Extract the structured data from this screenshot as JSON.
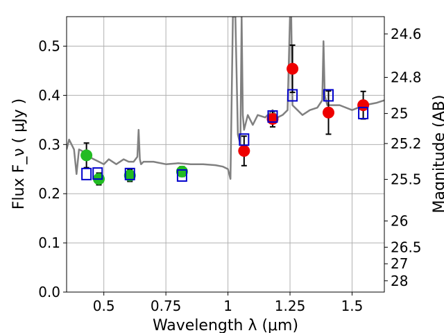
{
  "chart_data": {
    "type": "scatter",
    "xlabel": "Wavelength  λ (μm)",
    "ylabel": "Flux  F_ν  ( μJy )",
    "ylabel_right": "Magnitude (AB)",
    "xlim": [
      0.35,
      1.63
    ],
    "ylim": [
      0.0,
      0.56
    ],
    "grid": true,
    "x_ticks": [
      {
        "value": 0.5,
        "label": "0.5"
      },
      {
        "value": 0.75,
        "label": "0.75"
      },
      {
        "value": 1.0,
        "label": "1"
      },
      {
        "value": 1.25,
        "label": "1.25"
      },
      {
        "value": 1.5,
        "label": "1.5"
      }
    ],
    "y_ticks": [
      {
        "value": 0.0,
        "label": "0.0"
      },
      {
        "value": 0.1,
        "label": "0.1"
      },
      {
        "value": 0.2,
        "label": "0.2"
      },
      {
        "value": 0.3,
        "label": "0.3"
      },
      {
        "value": 0.4,
        "label": "0.4"
      },
      {
        "value": 0.5,
        "label": "0.5"
      }
    ],
    "right_ticks": [
      {
        "mag": 24.6,
        "label": "24.6"
      },
      {
        "mag": 24.8,
        "label": "24.8"
      },
      {
        "mag": 25.0,
        "label": "25"
      },
      {
        "mag": 25.2,
        "label": "25.2"
      },
      {
        "mag": 25.5,
        "label": "25.5"
      },
      {
        "mag": 26.0,
        "label": "26"
      },
      {
        "mag": 26.5,
        "label": "26.5"
      },
      {
        "mag": 27.0,
        "label": "27"
      },
      {
        "mag": 28.0,
        "label": "28"
      }
    ],
    "colors": {
      "spectrum": "#808080",
      "green": "#22bb22",
      "red": "#ee0000",
      "model_box": "#0000cc",
      "errorbar": "#000000",
      "grid": "#b0b0b0"
    },
    "spectrum": {
      "x": [
        0.35,
        0.36,
        0.37,
        0.38,
        0.39,
        0.4,
        0.42,
        0.44,
        0.46,
        0.48,
        0.5,
        0.52,
        0.55,
        0.58,
        0.6,
        0.62,
        0.635,
        0.64,
        0.645,
        0.65,
        0.66,
        0.7,
        0.75,
        0.8,
        0.85,
        0.9,
        0.95,
        0.98,
        1.0,
        1.01,
        1.02,
        1.03,
        1.04,
        1.05,
        1.055,
        1.06,
        1.065,
        1.07,
        1.08,
        1.09,
        1.1,
        1.12,
        1.15,
        1.18,
        1.2,
        1.22,
        1.24,
        1.25,
        1.255,
        1.26,
        1.28,
        1.3,
        1.33,
        1.36,
        1.38,
        1.385,
        1.39,
        1.4,
        1.42,
        1.45,
        1.5,
        1.55,
        1.6,
        1.63
      ],
      "y": [
        0.29,
        0.31,
        0.3,
        0.29,
        0.24,
        0.29,
        0.285,
        0.275,
        0.27,
        0.265,
        0.26,
        0.27,
        0.26,
        0.27,
        0.265,
        0.265,
        0.275,
        0.33,
        0.27,
        0.26,
        0.265,
        0.265,
        0.26,
        0.262,
        0.26,
        0.26,
        0.258,
        0.255,
        0.25,
        0.23,
        0.56,
        0.56,
        0.32,
        0.3,
        0.56,
        0.36,
        0.33,
        0.34,
        0.36,
        0.35,
        0.34,
        0.36,
        0.355,
        0.37,
        0.355,
        0.36,
        0.37,
        0.56,
        0.56,
        0.38,
        0.37,
        0.36,
        0.37,
        0.375,
        0.39,
        0.51,
        0.4,
        0.38,
        0.38,
        0.38,
        0.37,
        0.38,
        0.385,
        0.39
      ]
    },
    "green_points": [
      {
        "x": 0.43,
        "y": 0.278,
        "yerr": 0.025
      },
      {
        "x": 0.48,
        "y": 0.23,
        "yerr": 0.012
      },
      {
        "x": 0.605,
        "y": 0.237,
        "yerr": 0.012
      },
      {
        "x": 0.815,
        "y": 0.245,
        "yerr": 0.01
      }
    ],
    "red_points": [
      {
        "x": 1.065,
        "y": 0.287,
        "yerr": 0.03
      },
      {
        "x": 1.18,
        "y": 0.352,
        "yerr": 0.016
      },
      {
        "x": 1.26,
        "y": 0.454,
        "yerr": 0.048
      },
      {
        "x": 1.405,
        "y": 0.365,
        "yerr": 0.044
      },
      {
        "x": 1.545,
        "y": 0.38,
        "yerr": 0.028
      }
    ],
    "model_points": [
      {
        "x": 0.43,
        "y": 0.24
      },
      {
        "x": 0.475,
        "y": 0.241
      },
      {
        "x": 0.605,
        "y": 0.24
      },
      {
        "x": 0.815,
        "y": 0.237
      },
      {
        "x": 1.065,
        "y": 0.31
      },
      {
        "x": 1.18,
        "y": 0.357
      },
      {
        "x": 1.26,
        "y": 0.4
      },
      {
        "x": 1.405,
        "y": 0.4
      },
      {
        "x": 1.545,
        "y": 0.364
      }
    ]
  }
}
